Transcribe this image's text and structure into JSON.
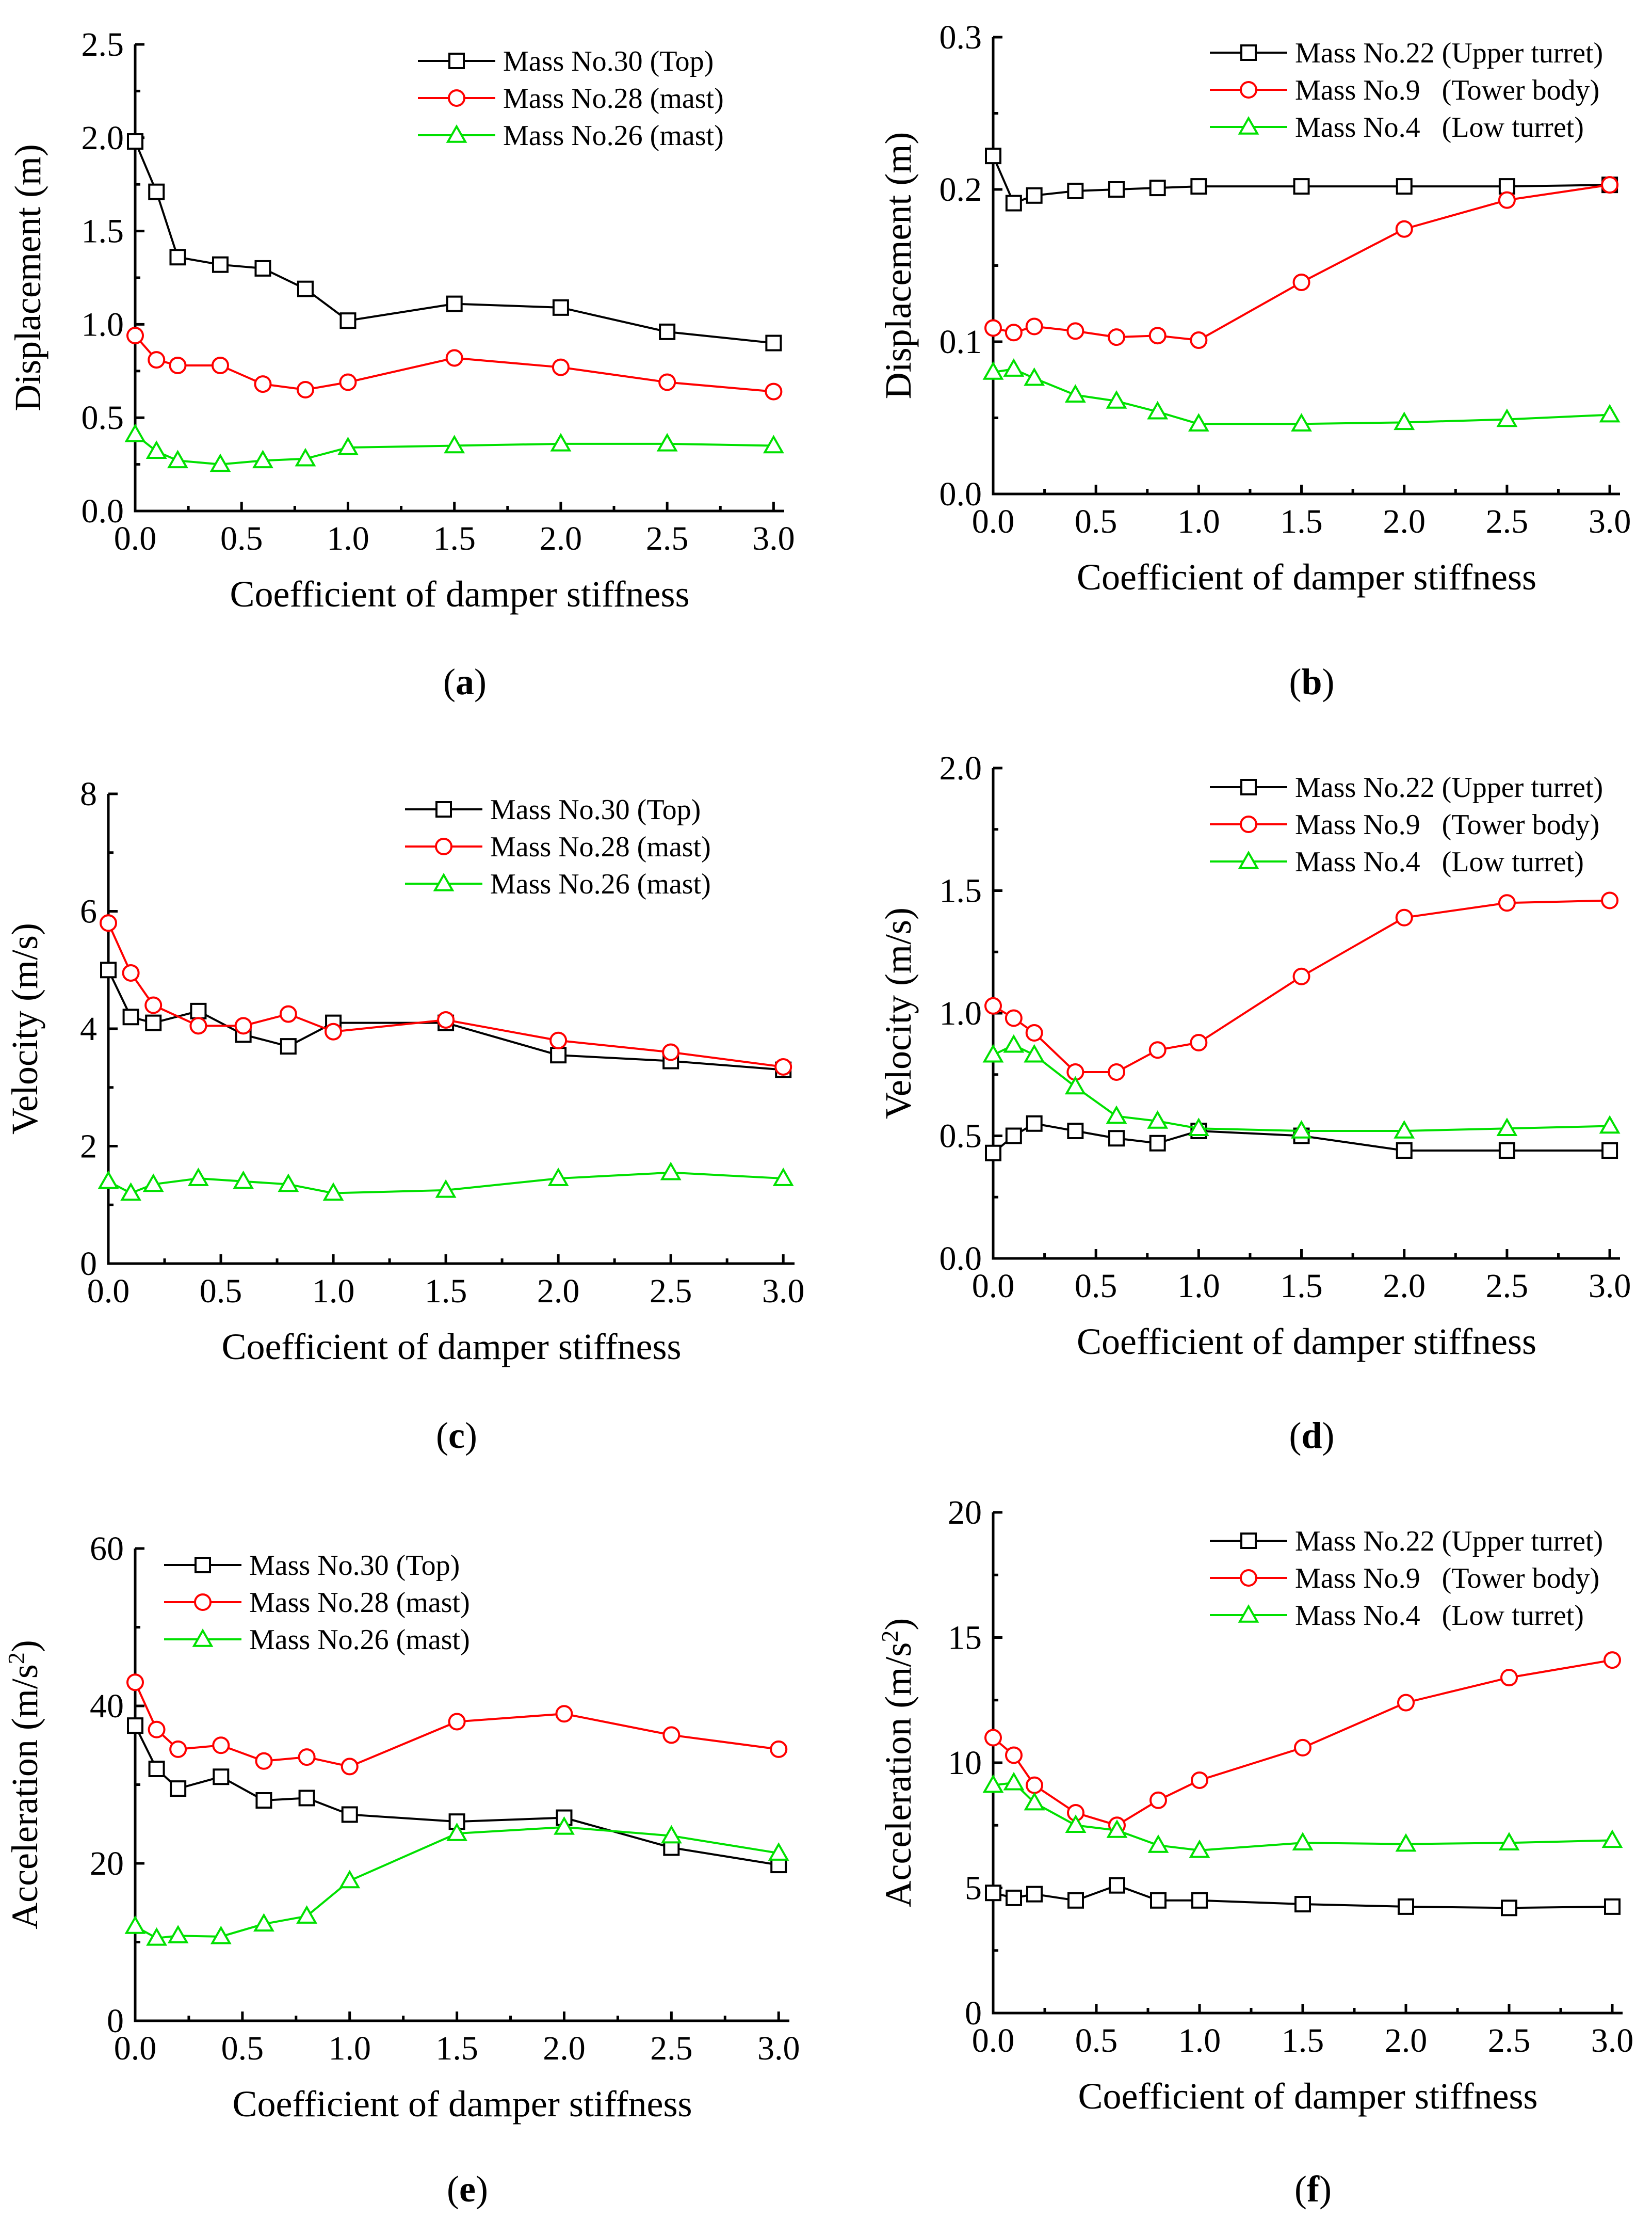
{
  "series_colors": {
    "black": "#000000",
    "red": "#ff0000",
    "green": "#00e000"
  },
  "chart_data": [
    {
      "type": "line",
      "caption": "a",
      "xlabel": "Coefficient of damper stiffness",
      "ylabel": "Displacement (m)",
      "xlim": [
        0,
        3.05
      ],
      "ylim": [
        0,
        2.5
      ],
      "xticks": [
        0,
        0.5,
        1,
        1.5,
        2,
        2.5,
        3
      ],
      "xtick_labels": [
        "0.0",
        "0.5",
        "1.0",
        "1.5",
        "2.0",
        "2.5",
        "3.0"
      ],
      "yticks": [
        0,
        0.5,
        1,
        1.5,
        2,
        2.5
      ],
      "ytick_labels": [
        "0.0",
        "0.5",
        "1.0",
        "1.5",
        "2.0",
        "2.5"
      ],
      "legend_position": "top-right",
      "x": [
        0,
        0.1,
        0.2,
        0.4,
        0.6,
        0.8,
        1.0,
        1.5,
        2.0,
        2.5,
        3.0
      ],
      "series": [
        {
          "name": "Mass No.30 (Top)",
          "marker": "square",
          "color": "#000000",
          "values": [
            1.98,
            1.71,
            1.36,
            1.32,
            1.3,
            1.19,
            1.02,
            1.11,
            1.09,
            0.96,
            0.9
          ]
        },
        {
          "name": "Mass No.28 (mast)",
          "marker": "circle",
          "color": "#ff0000",
          "values": [
            0.94,
            0.81,
            0.78,
            0.78,
            0.68,
            0.65,
            0.69,
            0.82,
            0.77,
            0.69,
            0.64
          ]
        },
        {
          "name": "Mass No.26 (mast)",
          "marker": "triangle",
          "color": "#00e000",
          "values": [
            0.41,
            0.32,
            0.27,
            0.25,
            0.27,
            0.28,
            0.34,
            0.35,
            0.36,
            0.36,
            0.35
          ]
        }
      ]
    },
    {
      "type": "line",
      "caption": "b",
      "xlabel": "Coefficient of damper stiffness",
      "ylabel": "Displacement (m)",
      "xlim": [
        0,
        3.05
      ],
      "ylim": [
        0,
        0.3
      ],
      "xticks": [
        0,
        0.5,
        1,
        1.5,
        2,
        2.5,
        3
      ],
      "xtick_labels": [
        "0.0",
        "0.5",
        "1.0",
        "1.5",
        "2.0",
        "2.5",
        "3.0"
      ],
      "yticks": [
        0,
        0.1,
        0.2,
        0.3
      ],
      "ytick_labels": [
        "0.0",
        "0.1",
        "0.2",
        "0.3"
      ],
      "legend_position": "top-right",
      "x": [
        0,
        0.1,
        0.2,
        0.4,
        0.6,
        0.8,
        1.0,
        1.5,
        2.0,
        2.5,
        3.0
      ],
      "series": [
        {
          "name": "Mass No.22 (Upper turret)",
          "marker": "square",
          "color": "#000000",
          "values": [
            0.222,
            0.191,
            0.196,
            0.199,
            0.2,
            0.201,
            0.202,
            0.202,
            0.202,
            0.202,
            0.203
          ]
        },
        {
          "name": "Mass No.9   (Tower body)",
          "marker": "circle",
          "color": "#ff0000",
          "values": [
            0.109,
            0.106,
            0.11,
            0.107,
            0.103,
            0.104,
            0.101,
            0.139,
            0.174,
            0.193,
            0.203
          ]
        },
        {
          "name": "Mass No.4   (Low turret)",
          "marker": "triangle",
          "color": "#00e000",
          "values": [
            0.08,
            0.082,
            0.076,
            0.065,
            0.061,
            0.054,
            0.046,
            0.046,
            0.047,
            0.049,
            0.052
          ]
        }
      ]
    },
    {
      "type": "line",
      "caption": "c",
      "xlabel": "Coefficient of damper stiffness",
      "ylabel": "Velocity (m/s)",
      "xlim": [
        0,
        3.05
      ],
      "ylim": [
        0,
        8
      ],
      "xticks": [
        0,
        0.5,
        1,
        1.5,
        2,
        2.5,
        3
      ],
      "xtick_labels": [
        "0.0",
        "0.5",
        "1.0",
        "1.5",
        "2.0",
        "2.5",
        "3.0"
      ],
      "yticks": [
        0,
        2,
        4,
        6,
        8
      ],
      "ytick_labels": [
        "0",
        "2",
        "4",
        "6",
        "8"
      ],
      "legend_position": "top-right",
      "x": [
        0,
        0.1,
        0.2,
        0.4,
        0.6,
        0.8,
        1.0,
        1.5,
        2.0,
        2.5,
        3.0
      ],
      "series": [
        {
          "name": "Mass No.30 (Top)",
          "marker": "square",
          "color": "#000000",
          "values": [
            5.0,
            4.2,
            4.1,
            4.3,
            3.9,
            3.7,
            4.1,
            4.1,
            3.55,
            3.45,
            3.3
          ]
        },
        {
          "name": "Mass No.28 (mast)",
          "marker": "circle",
          "color": "#ff0000",
          "values": [
            5.8,
            4.95,
            4.4,
            4.05,
            4.05,
            4.25,
            3.95,
            4.15,
            3.8,
            3.6,
            3.35
          ]
        },
        {
          "name": "Mass No.26 (mast)",
          "marker": "triangle",
          "color": "#00e000",
          "values": [
            1.4,
            1.2,
            1.35,
            1.45,
            1.4,
            1.35,
            1.2,
            1.25,
            1.45,
            1.55,
            1.45
          ]
        }
      ]
    },
    {
      "type": "line",
      "caption": "d",
      "xlabel": "Coefficient of damper stiffness",
      "ylabel": "Velocity (m/s)",
      "xlim": [
        0,
        3.05
      ],
      "ylim": [
        0,
        2
      ],
      "xticks": [
        0,
        0.5,
        1,
        1.5,
        2,
        2.5,
        3
      ],
      "xtick_labels": [
        "0.0",
        "0.5",
        "1.0",
        "1.5",
        "2.0",
        "2.5",
        "3.0"
      ],
      "yticks": [
        0,
        0.5,
        1,
        1.5,
        2
      ],
      "ytick_labels": [
        "0.0",
        "0.5",
        "1.0",
        "1.5",
        "2.0"
      ],
      "legend_position": "top-right",
      "x": [
        0,
        0.1,
        0.2,
        0.4,
        0.6,
        0.8,
        1.0,
        1.5,
        2.0,
        2.5,
        3.0
      ],
      "series": [
        {
          "name": "Mass No.22 (Upper turret)",
          "marker": "square",
          "color": "#000000",
          "values": [
            0.43,
            0.5,
            0.55,
            0.52,
            0.49,
            0.47,
            0.52,
            0.5,
            0.44,
            0.44,
            0.44
          ]
        },
        {
          "name": "Mass No.9   (Tower body)",
          "marker": "circle",
          "color": "#ff0000",
          "values": [
            1.03,
            0.98,
            0.92,
            0.76,
            0.76,
            0.85,
            0.88,
            1.15,
            1.39,
            1.45,
            1.46
          ]
        },
        {
          "name": "Mass No.4   (Low turret)",
          "marker": "triangle",
          "color": "#00e000",
          "values": [
            0.83,
            0.87,
            0.83,
            0.7,
            0.58,
            0.56,
            0.53,
            0.52,
            0.52,
            0.53,
            0.54
          ]
        }
      ]
    },
    {
      "type": "line",
      "caption": "e",
      "xlabel": "Coefficient of damper stiffness",
      "ylabel": "Acceleration (m/s",
      "ylabel_sup": "2",
      "ylabel_end": ")",
      "xlim": [
        0,
        3.05
      ],
      "ylim": [
        0,
        60
      ],
      "xticks": [
        0,
        0.5,
        1,
        1.5,
        2,
        2.5,
        3
      ],
      "xtick_labels": [
        "0.0",
        "0.5",
        "1.0",
        "1.5",
        "2.0",
        "2.5",
        "3.0"
      ],
      "yticks": [
        0,
        20,
        40,
        60
      ],
      "ytick_labels": [
        "0",
        "20",
        "40",
        "60"
      ],
      "legend_position": "top-right",
      "x": [
        0,
        0.1,
        0.2,
        0.4,
        0.6,
        0.8,
        1.0,
        1.5,
        2.0,
        2.5,
        3.0
      ],
      "series": [
        {
          "name": "Mass No.30 (Top)",
          "marker": "square",
          "color": "#000000",
          "values": [
            37.5,
            32,
            29.5,
            31,
            28,
            28.3,
            26.2,
            25.3,
            25.8,
            22,
            19.8
          ]
        },
        {
          "name": "Mass No.28 (mast)",
          "marker": "circle",
          "color": "#ff0000",
          "values": [
            43,
            37,
            34.5,
            35,
            33,
            33.5,
            32.3,
            38,
            39,
            36.3,
            34.5
          ]
        },
        {
          "name": "Mass No.26 (mast)",
          "marker": "triangle",
          "color": "#00e000",
          "values": [
            12,
            10.5,
            10.8,
            10.7,
            12.3,
            13.3,
            17.8,
            23.8,
            24.6,
            23.5,
            21.3
          ]
        }
      ]
    },
    {
      "type": "line",
      "caption": "f",
      "xlabel": "Coefficient of damper stiffness",
      "ylabel": "Acceleration (m/s",
      "ylabel_sup": "2",
      "ylabel_end": ")",
      "xlim": [
        0,
        3.05
      ],
      "ylim": [
        0,
        20
      ],
      "xticks": [
        0,
        0.5,
        1,
        1.5,
        2,
        2.5,
        3
      ],
      "xtick_labels": [
        "0.0",
        "0.5",
        "1.0",
        "1.5",
        "2.0",
        "2.5",
        "3.0"
      ],
      "yticks": [
        0,
        5,
        10,
        15,
        20
      ],
      "ytick_labels": [
        "0",
        "5",
        "10",
        "15",
        "20"
      ],
      "legend_position": "top-right",
      "x": [
        0,
        0.1,
        0.2,
        0.4,
        0.6,
        0.8,
        1.0,
        1.5,
        2.0,
        2.5,
        3.0
      ],
      "series": [
        {
          "name": "Mass No.22 (Upper turret)",
          "marker": "square",
          "color": "#000000",
          "values": [
            4.8,
            4.6,
            4.75,
            4.5,
            5.1,
            4.5,
            4.5,
            4.35,
            4.25,
            4.2,
            4.25
          ]
        },
        {
          "name": "Mass No.9   (Tower body)",
          "marker": "circle",
          "color": "#ff0000",
          "values": [
            11.0,
            10.3,
            9.1,
            8.0,
            7.5,
            8.5,
            9.3,
            10.6,
            12.4,
            13.4,
            14.1
          ]
        },
        {
          "name": "Mass No.4   (Low turret)",
          "marker": "triangle",
          "color": "#00e000",
          "values": [
            9.1,
            9.2,
            8.4,
            7.5,
            7.3,
            6.7,
            6.5,
            6.8,
            6.75,
            6.8,
            6.9
          ]
        }
      ]
    }
  ]
}
